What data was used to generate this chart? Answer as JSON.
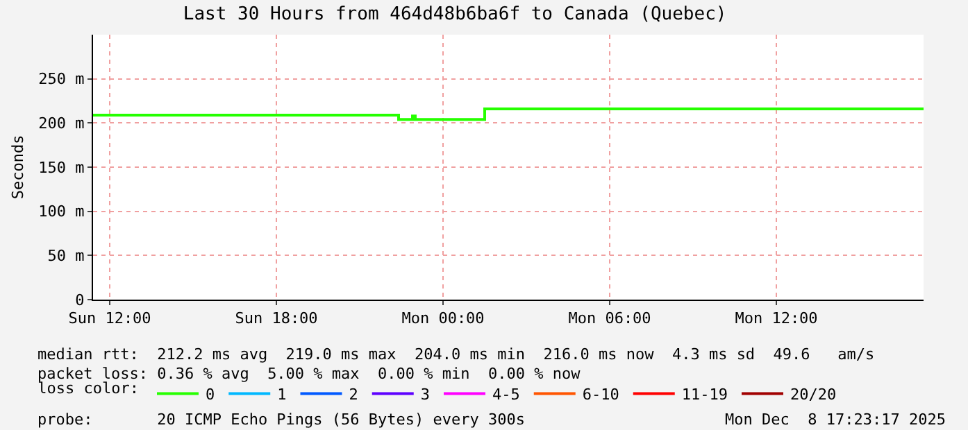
{
  "chart_data": {
    "type": "line",
    "title": "Last 30 Hours from 464d48b6ba6f to Canada (Quebec)",
    "ylabel": "Seconds",
    "legend_title": "loss color:",
    "x": [
      "2025-12-07T11:24",
      "2025-12-07T22:24",
      "2025-12-07T22:24",
      "2025-12-07T22:54",
      "2025-12-07T22:54",
      "2025-12-07T23:00",
      "2025-12-07T23:00",
      "2025-12-08T01:30",
      "2025-12-08T01:30",
      "2025-12-08T17:18"
    ],
    "series": [
      {
        "name": "0",
        "color": "#26ff00",
        "values": [
          209,
          209,
          204,
          204,
          208,
          208,
          204,
          204,
          216,
          216
        ]
      },
      {
        "name": "1",
        "color": "#00b8ff",
        "values": [
          null,
          null,
          null,
          null,
          null,
          null,
          null,
          null,
          null,
          null
        ]
      },
      {
        "name": "2",
        "color": "#0059ff",
        "values": [
          null,
          null,
          null,
          null,
          null,
          null,
          null,
          null,
          null,
          null
        ]
      },
      {
        "name": "3",
        "color": "#5e00ff",
        "values": [
          null,
          null,
          null,
          null,
          null,
          null,
          null,
          null,
          null,
          null
        ]
      },
      {
        "name": "4-5",
        "color": "#ff00ff",
        "values": [
          null,
          null,
          null,
          null,
          null,
          null,
          null,
          null,
          null,
          null
        ]
      },
      {
        "name": "6-10",
        "color": "#ff5500",
        "values": [
          null,
          null,
          null,
          null,
          null,
          null,
          null,
          null,
          null,
          null
        ]
      },
      {
        "name": "11-19",
        "color": "#ff0000",
        "values": [
          null,
          null,
          null,
          null,
          null,
          null,
          null,
          null,
          null,
          null
        ]
      },
      {
        "name": "20/20",
        "color": "#a10000",
        "values": [
          null,
          null,
          null,
          null,
          null,
          null,
          null,
          null,
          null,
          null
        ]
      }
    ],
    "xlim": [
      "2025-12-07T11:24",
      "2025-12-08T17:18"
    ],
    "xticks": [
      {
        "value": "2025-12-07T12:00",
        "label": "Sun 12:00"
      },
      {
        "value": "2025-12-07T18:00",
        "label": "Sun 18:00"
      },
      {
        "value": "2025-12-08T00:00",
        "label": "Mon 00:00"
      },
      {
        "value": "2025-12-08T06:00",
        "label": "Mon 06:00"
      },
      {
        "value": "2025-12-08T12:00",
        "label": "Mon 12:00"
      }
    ],
    "ylim": [
      0,
      300
    ],
    "yticks": [
      0,
      {
        "value": 50,
        "label": "50 m"
      },
      {
        "value": 100,
        "label": "100 m"
      },
      {
        "value": 150,
        "label": "150 m"
      },
      {
        "value": 200,
        "label": "200 m"
      },
      {
        "value": 250,
        "label": "250 m"
      }
    ],
    "grid": true,
    "legend": "bottom",
    "marker": "none",
    "line_style": "solid",
    "annotations": [
      "median rtt:  212.2 ms avg  219.0 ms max  204.0 ms min  216.0 ms now  4.3 ms sd  49.6   am/s",
      "packet loss: 0.36 % avg  5.00 % max  0.00 % min  0.00 % now",
      "probe:       20 ICMP Echo Pings (56 Bytes) every 300s",
      "Mon Dec  8 17:23:17 2025"
    ]
  }
}
